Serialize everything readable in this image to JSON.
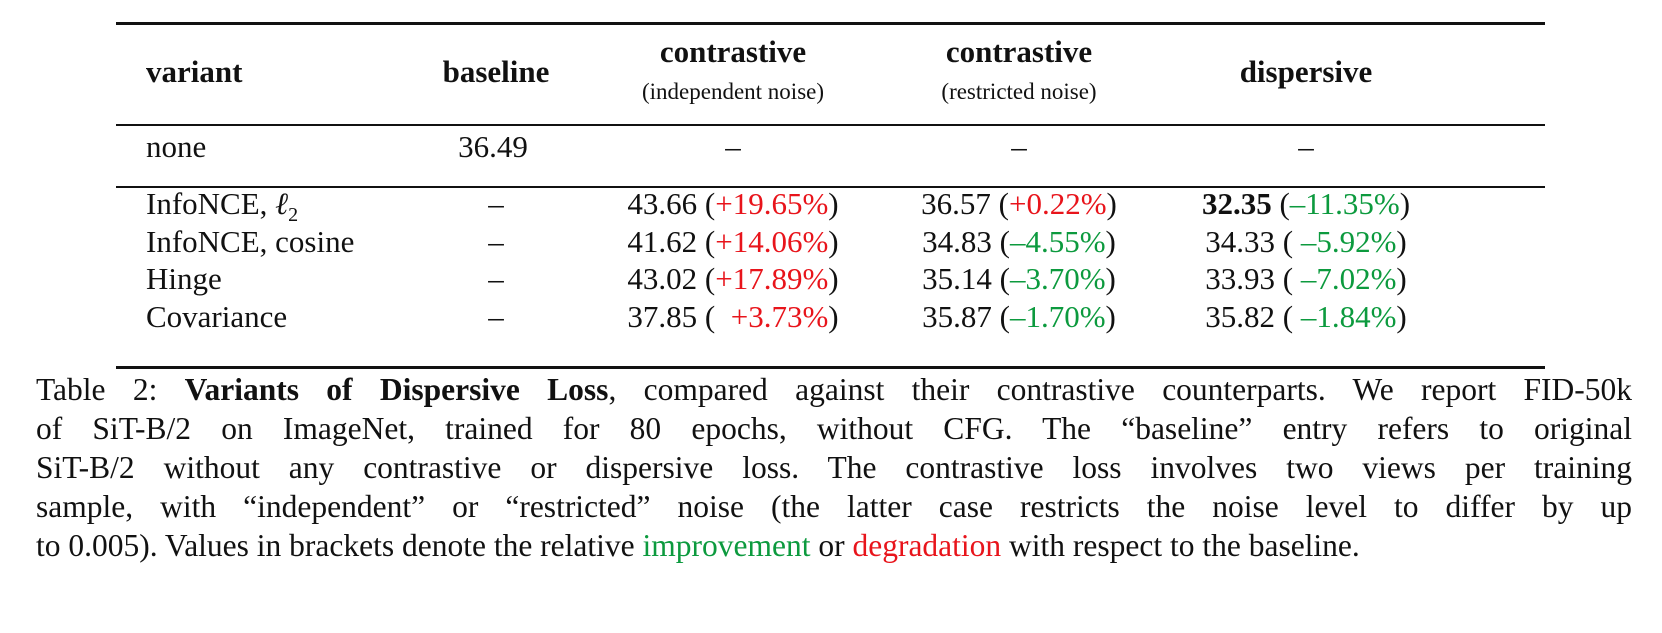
{
  "table": {
    "headers": {
      "variant": "variant",
      "baseline": "baseline",
      "contrastive_indep": {
        "title": "contrastive",
        "sub": "(independent noise)"
      },
      "contrastive_restr": {
        "title": "contrastive",
        "sub": "(restricted noise)"
      },
      "dispersive": "dispersive"
    },
    "none_row": {
      "variant": "none",
      "baseline": "36.49",
      "c1": "–",
      "c2": "–",
      "d": "–"
    },
    "rows": [
      {
        "variant": "InfoNCE, ",
        "variant_math": "ℓ",
        "variant_sub": "2",
        "baseline": "–",
        "c1_val": "43.66",
        "c1_delta": "+19.65%",
        "c1_color": "#e8141b",
        "c2_val": "36.57",
        "c2_delta": "+0.22%",
        "c2_color": "#e8141b",
        "d_val": "32.35",
        "d_delta": "–11.35%",
        "d_color": "#0c9a3e"
      },
      {
        "variant": "InfoNCE, cosine",
        "baseline": "–",
        "c1_val": "41.62",
        "c1_delta": "+14.06%",
        "c1_color": "#e8141b",
        "c2_val": "34.83",
        "c2_delta": "–4.55%",
        "c2_color": "#0c9a3e",
        "d_val": "34.33",
        "d_delta": " –5.92%",
        "d_color": "#0c9a3e"
      },
      {
        "variant": "Hinge",
        "baseline": "–",
        "c1_val": "43.02",
        "c1_delta": "+17.89%",
        "c1_color": "#e8141b",
        "c2_val": "35.14",
        "c2_delta": "–3.70%",
        "c2_color": "#0c9a3e",
        "d_val": "33.93",
        "d_delta": " –7.02%",
        "d_color": "#0c9a3e"
      },
      {
        "variant": "Covariance",
        "baseline": "–",
        "c1_val": "37.85",
        "c1_delta": "  +3.73%",
        "c1_color": "#e8141b",
        "c2_val": "35.87",
        "c2_delta": "–1.70%",
        "c2_color": "#0c9a3e",
        "d_val": "35.82",
        "d_delta": " –1.84%",
        "d_color": "#0c9a3e"
      }
    ]
  },
  "caption": {
    "label": "Table 2: ",
    "title": "Variants of Dispersive Loss",
    "l1": ", compared against their contrastive counterparts. We report FID-50k",
    "l2": "of SiT-B/2 on ImageNet, trained for 80 epochs, without CFG. The “baseline” entry refers to original",
    "l3": "SiT-B/2 without any contrastive or dispersive loss. The contrastive loss involves two views per training",
    "l4": "sample, with “independent” or “restricted” noise (the latter case restricts the noise level to differ by up",
    "l5a": "to ",
    "l5num": "0.005",
    "l5b": "). Values in brackets denote the relative ",
    "improvement": "improvement",
    "or": " or ",
    "degradation": "degradation",
    "l5c": " with respect to the baseline."
  }
}
